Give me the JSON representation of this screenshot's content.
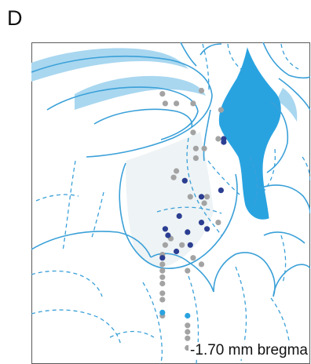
{
  "panel_label": "D",
  "section_label": "-1.70 mm bregma",
  "colors": {
    "outline": "#3aa0d8",
    "ventricle": "#29a3e0",
    "fiber_tract": "#a9d7f0",
    "region_fill": "#eef3f5",
    "dot_gray": "#a3a3a3",
    "dot_navy": "#2b3e91",
    "dot_cyan": "#29a3e0"
  },
  "points": [
    {
      "group": "gray",
      "x": 0.47,
      "y": 0.16
    },
    {
      "group": "gray",
      "x": 0.61,
      "y": 0.15
    },
    {
      "group": "gray",
      "x": 0.48,
      "y": 0.19
    },
    {
      "group": "gray",
      "x": 0.52,
      "y": 0.19
    },
    {
      "group": "gray",
      "x": 0.58,
      "y": 0.19
    },
    {
      "group": "gray",
      "x": 0.68,
      "y": 0.21
    },
    {
      "group": "gray",
      "x": 0.58,
      "y": 0.28
    },
    {
      "group": "gray",
      "x": 0.67,
      "y": 0.3
    },
    {
      "group": "gray",
      "x": 0.59,
      "y": 0.33
    },
    {
      "group": "gray",
      "x": 0.62,
      "y": 0.33
    },
    {
      "group": "gray",
      "x": 0.59,
      "y": 0.36
    },
    {
      "group": "gray",
      "x": 0.52,
      "y": 0.4
    },
    {
      "group": "gray",
      "x": 0.51,
      "y": 0.42
    },
    {
      "group": "gray",
      "x": 0.55,
      "y": 0.43
    },
    {
      "group": "gray",
      "x": 0.57,
      "y": 0.48
    },
    {
      "group": "gray",
      "x": 0.63,
      "y": 0.48
    },
    {
      "group": "gray",
      "x": 0.62,
      "y": 0.5
    },
    {
      "group": "gray",
      "x": 0.67,
      "y": 0.56
    },
    {
      "group": "gray",
      "x": 0.5,
      "y": 0.61
    },
    {
      "group": "gray",
      "x": 0.48,
      "y": 0.63
    },
    {
      "group": "gray",
      "x": 0.54,
      "y": 0.63
    },
    {
      "group": "gray",
      "x": 0.47,
      "y": 0.66
    },
    {
      "group": "gray",
      "x": 0.58,
      "y": 0.67
    },
    {
      "group": "gray",
      "x": 0.47,
      "y": 0.69
    },
    {
      "group": "gray",
      "x": 0.61,
      "y": 0.69
    },
    {
      "group": "gray",
      "x": 0.47,
      "y": 0.71
    },
    {
      "group": "gray",
      "x": 0.56,
      "y": 0.71
    },
    {
      "group": "gray",
      "x": 0.47,
      "y": 0.73
    },
    {
      "group": "gray",
      "x": 0.47,
      "y": 0.75
    },
    {
      "group": "gray",
      "x": 0.47,
      "y": 0.78
    },
    {
      "group": "gray",
      "x": 0.47,
      "y": 0.8
    },
    {
      "group": "gray",
      "x": 0.47,
      "y": 0.85
    },
    {
      "group": "gray",
      "x": 0.56,
      "y": 0.88
    },
    {
      "group": "gray",
      "x": 0.56,
      "y": 0.9
    },
    {
      "group": "gray",
      "x": 0.56,
      "y": 0.92
    },
    {
      "group": "gray",
      "x": 0.56,
      "y": 0.95
    },
    {
      "group": "navy",
      "x": 0.69,
      "y": 0.3
    },
    {
      "group": "navy",
      "x": 0.69,
      "y": 0.31
    },
    {
      "group": "navy",
      "x": 0.55,
      "y": 0.43
    },
    {
      "group": "navy",
      "x": 0.61,
      "y": 0.48
    },
    {
      "group": "navy",
      "x": 0.68,
      "y": 0.46
    },
    {
      "group": "navy",
      "x": 0.53,
      "y": 0.54
    },
    {
      "group": "navy",
      "x": 0.61,
      "y": 0.56
    },
    {
      "group": "navy",
      "x": 0.48,
      "y": 0.58
    },
    {
      "group": "navy",
      "x": 0.63,
      "y": 0.58
    },
    {
      "group": "navy",
      "x": 0.56,
      "y": 0.59
    },
    {
      "group": "navy",
      "x": 0.49,
      "y": 0.6
    },
    {
      "group": "navy",
      "x": 0.57,
      "y": 0.63
    },
    {
      "group": "navy",
      "x": 0.52,
      "y": 0.65
    },
    {
      "group": "navy",
      "x": 0.47,
      "y": 0.67
    },
    {
      "group": "cyan",
      "x": 0.47,
      "y": 0.84
    },
    {
      "group": "cyan",
      "x": 0.56,
      "y": 0.85
    }
  ]
}
